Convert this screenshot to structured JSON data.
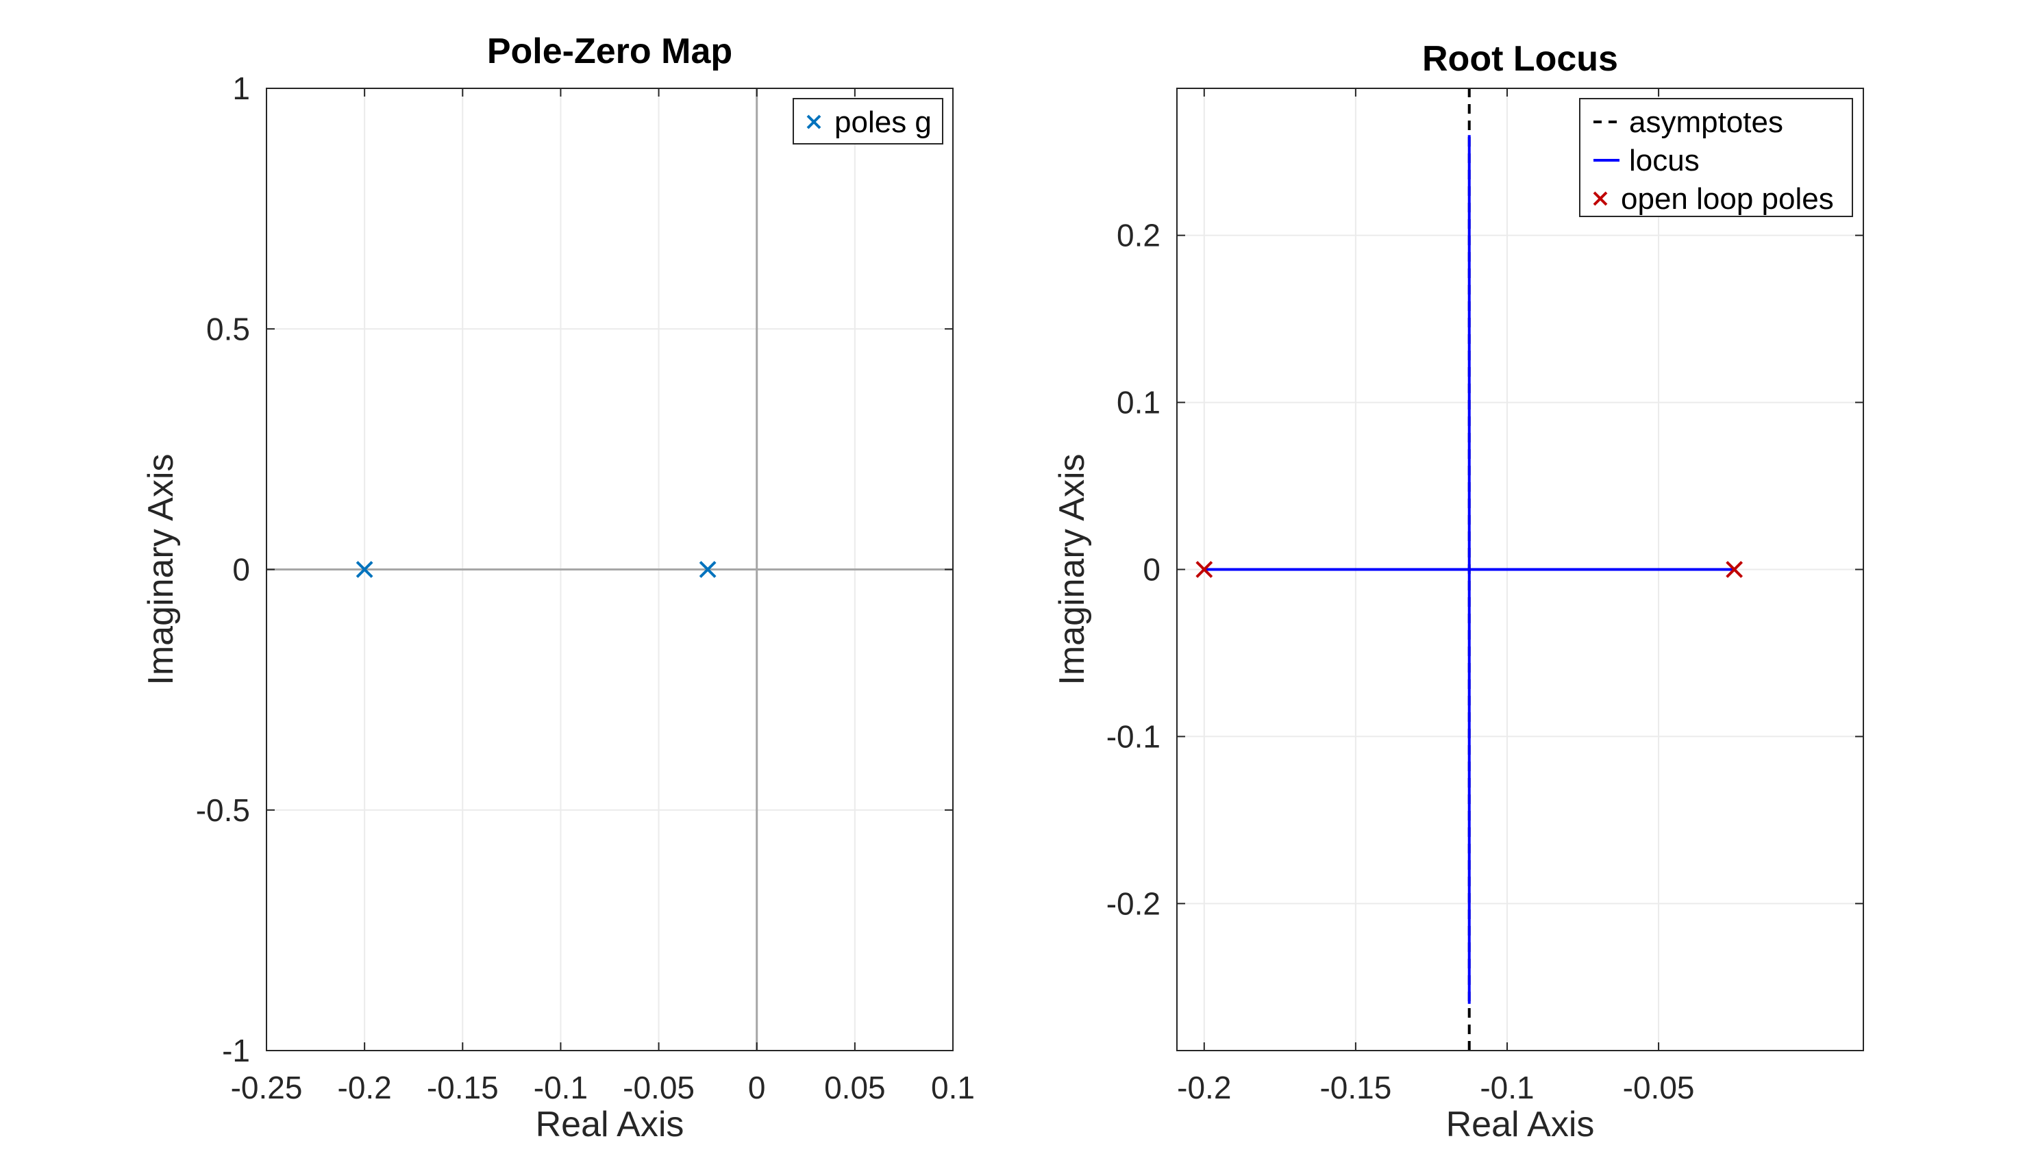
{
  "chart_data": [
    {
      "type": "scatter",
      "title": "Pole-Zero Map",
      "xlabel": "Real Axis",
      "ylabel": "Imaginary Axis",
      "xlim": [
        -0.25,
        0.1
      ],
      "ylim": [
        -1,
        1
      ],
      "xticks": [
        -0.25,
        -0.2,
        -0.15,
        -0.1,
        -0.05,
        0,
        0.05,
        0.1
      ],
      "xtick_labels": [
        "-0.25",
        "-0.2",
        "-0.15",
        "-0.1",
        "-0.05",
        "0",
        "0.05",
        "0.1"
      ],
      "yticks": [
        -1,
        -0.5,
        0,
        0.5,
        1
      ],
      "ytick_labels": [
        "-1",
        "-0.5",
        "0",
        "0.5",
        "1"
      ],
      "grid": true,
      "legend_position": "top-right",
      "series": [
        {
          "name": "poles g",
          "marker": "x",
          "color": "#0072BD",
          "points": [
            {
              "x": -0.2,
              "y": 0
            },
            {
              "x": -0.025,
              "y": 0
            }
          ]
        }
      ]
    },
    {
      "type": "line",
      "title": "Root Locus",
      "xlabel": "Real Axis",
      "ylabel": "Imaginary Axis",
      "xlim": [
        -0.209,
        0.0176
      ],
      "ylim": [
        -0.288,
        0.288
      ],
      "xticks": [
        -0.2,
        -0.15,
        -0.1,
        -0.05
      ],
      "xtick_labels": [
        "-0.2",
        "-0.15",
        "-0.1",
        "-0.05"
      ],
      "yticks": [
        -0.2,
        -0.1,
        0,
        0.1,
        0.2
      ],
      "ytick_labels": [
        "-0.2",
        "-0.1",
        "0",
        "0.1",
        "0.2"
      ],
      "grid": true,
      "legend_position": "top-right",
      "series": [
        {
          "name": "asymptotes",
          "style": "dashed",
          "color": "#000000",
          "segments": [
            [
              {
                "x": -0.1125,
                "y": -0.288
              },
              {
                "x": -0.1125,
                "y": 0.288
              }
            ]
          ]
        },
        {
          "name": "locus",
          "style": "solid",
          "color": "#0000FF",
          "segments": [
            [
              {
                "x": -0.2,
                "y": 0
              },
              {
                "x": -0.025,
                "y": 0
              }
            ],
            [
              {
                "x": -0.1125,
                "y": -0.26
              },
              {
                "x": -0.1125,
                "y": 0.26
              }
            ]
          ]
        },
        {
          "name": "open loop poles",
          "marker": "x",
          "color": "#C00000",
          "points": [
            {
              "x": -0.2,
              "y": 0
            },
            {
              "x": -0.025,
              "y": 0
            }
          ]
        }
      ]
    }
  ]
}
